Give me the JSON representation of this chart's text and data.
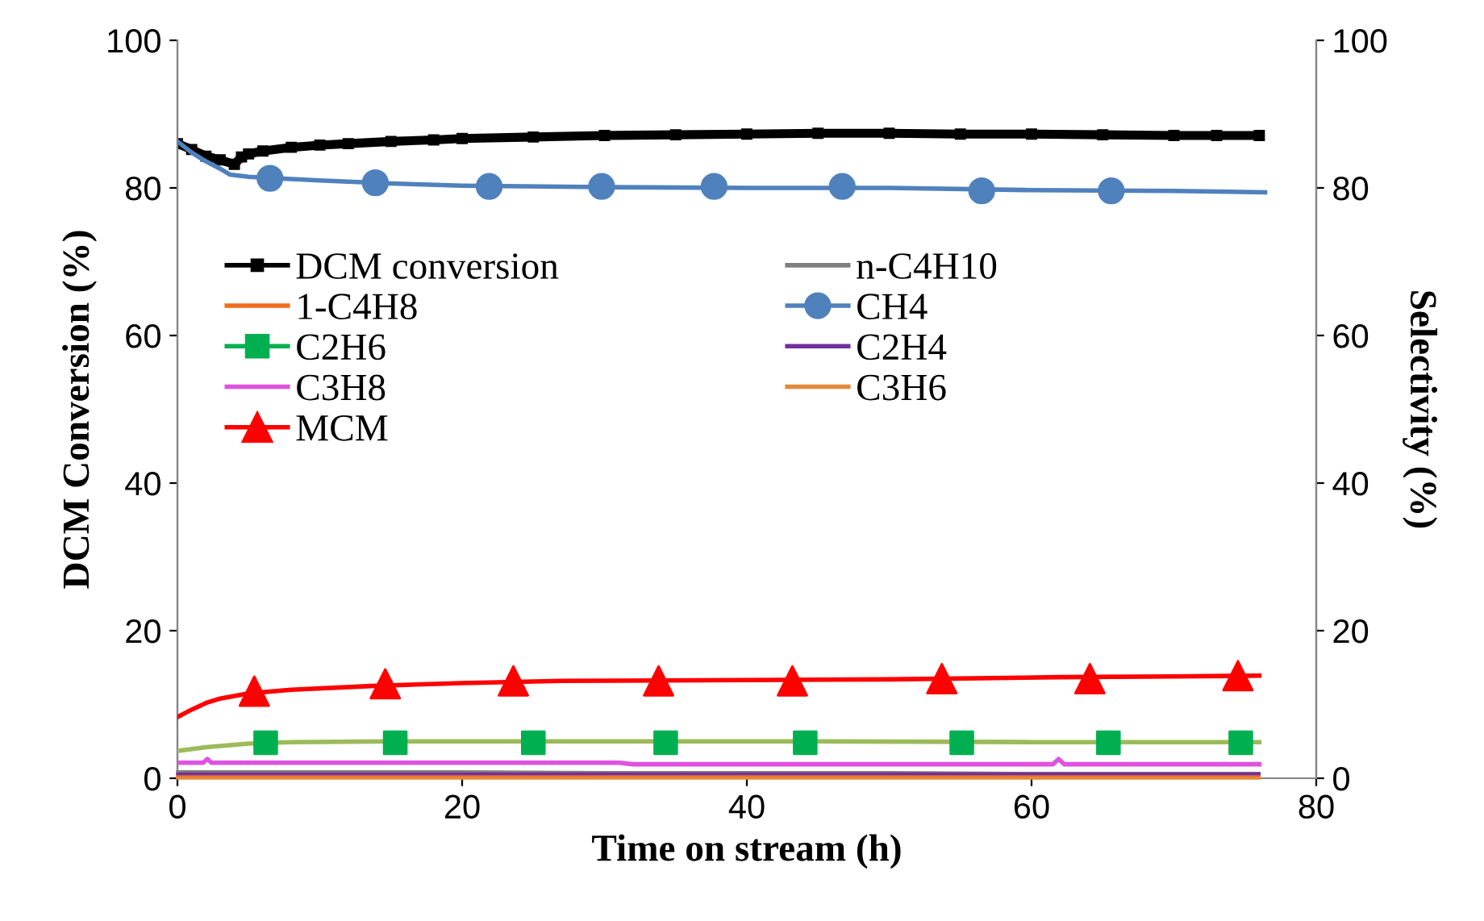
{
  "chart_data": {
    "type": "line",
    "xlabel": "Time on stream (h)",
    "ylabel": "DCM Conversion (%)",
    "y2label": "Selectivity (%)",
    "xlim": [
      0,
      80
    ],
    "xticks": [
      0,
      20,
      40,
      60,
      80
    ],
    "ylim": [
      0,
      100
    ],
    "yticks": [
      0,
      20,
      40,
      60,
      80,
      100
    ],
    "y2lim": [
      0,
      100
    ],
    "y2ticks": [
      0,
      20,
      40,
      60,
      80,
      100
    ],
    "grid": false,
    "legend": "left",
    "line_style": "solid",
    "series": [
      {
        "name": "DCM conversion",
        "marker": "square",
        "color": "#000000",
        "x": [
          0,
          1,
          2,
          3,
          4,
          4.5,
          5,
          6,
          8,
          10,
          12,
          15,
          18,
          20,
          25,
          30,
          35,
          40,
          45,
          50,
          55,
          60,
          65,
          70,
          73,
          76
        ],
        "values": [
          86,
          85.2,
          84.3,
          83.8,
          83.2,
          84.2,
          84.6,
          85,
          85.5,
          85.8,
          86,
          86.3,
          86.5,
          86.7,
          86.9,
          87.1,
          87.2,
          87.3,
          87.4,
          87.4,
          87.3,
          87.3,
          87.2,
          87.1,
          87.1,
          87.1
        ]
      },
      {
        "name": "n-C4H10",
        "axis": "y2",
        "marker": "none",
        "color": "#7f7f7f",
        "x": [
          0,
          5,
          10,
          20,
          30,
          40,
          50,
          60,
          70,
          76
        ],
        "values": [
          0.9,
          0.9,
          0.9,
          0.9,
          0.8,
          0.8,
          0.8,
          0.7,
          0.7,
          0.7
        ]
      },
      {
        "name": "1-C4H8",
        "axis": "y2",
        "marker": "none",
        "color": "#f26d1f",
        "x": [
          0,
          20,
          40,
          60,
          76
        ],
        "values": [
          0.3,
          0.3,
          0.3,
          0.3,
          0.3
        ]
      },
      {
        "name": "CH4",
        "type": "scatter",
        "axis": "y2",
        "marker": "circle",
        "color": "#4f81bd",
        "x": [
          6.5,
          13.9,
          21.9,
          29.8,
          37.7,
          46.7,
          56.5,
          65.6
        ],
        "values": [
          81.3,
          80.7,
          80.2,
          80.2,
          80.2,
          80.2,
          79.6,
          79.6
        ]
      },
      {
        "name": "C2H6",
        "type": "scatter",
        "axis": "y2",
        "marker": "square",
        "color": "#00b050",
        "x": [
          6.2,
          15.3,
          25.0,
          34.3,
          44.1,
          55.1,
          65.4,
          74.7
        ],
        "values": [
          4.8,
          4.8,
          4.8,
          4.8,
          4.8,
          4.8,
          4.8,
          4.8
        ]
      },
      {
        "name": "C2H4",
        "axis": "y2",
        "marker": "none",
        "color": "#7030a0",
        "x": [
          0,
          20,
          40,
          60,
          76
        ],
        "values": [
          0.6,
          0.6,
          0.6,
          0.6,
          0.6
        ]
      },
      {
        "name": "C3H8",
        "axis": "y2",
        "marker": "none",
        "color": "#e052e0",
        "x": [
          0,
          1.8,
          2.1,
          2.4,
          10,
          20,
          31,
          32,
          40,
          50,
          61.5,
          61.9,
          62.3,
          70,
          76
        ],
        "values": [
          2.1,
          2.1,
          2.6,
          2.1,
          2.1,
          2.1,
          2.1,
          1.9,
          1.9,
          1.9,
          1.9,
          2.6,
          1.9,
          1.9,
          1.9
        ]
      },
      {
        "name": "C3H6",
        "axis": "y2",
        "marker": "none",
        "color": "#e4893b",
        "x": [
          0,
          20,
          40,
          60,
          76
        ],
        "values": [
          0,
          0,
          0,
          0,
          0
        ]
      },
      {
        "name": "MCM",
        "type": "scatter",
        "axis": "y2",
        "marker": "triangle",
        "color": "#ff0000",
        "x": [
          5.4,
          14.6,
          23.6,
          33.8,
          43.2,
          53.7,
          64.1,
          74.5
        ],
        "values": [
          11.8,
          12.8,
          13.2,
          13.2,
          13.2,
          13.5,
          13.5,
          13.9
        ]
      },
      {
        "axis": "y2",
        "marker": "none",
        "color": "#4f81bd",
        "x": [
          0,
          1,
          2,
          3,
          3.7,
          5,
          8,
          10,
          15,
          20,
          30,
          40,
          50,
          60,
          70,
          76.4
        ],
        "values": [
          86.3,
          84.8,
          83.6,
          82.6,
          81.8,
          81.5,
          81.2,
          81,
          80.6,
          80.3,
          80.1,
          80,
          80,
          79.7,
          79.6,
          79.4
        ]
      },
      {
        "axis": "y2",
        "marker": "none",
        "color": "#9bbb59",
        "x": [
          0,
          2,
          5,
          8,
          15,
          30,
          45,
          60,
          76
        ],
        "values": [
          3.7,
          4.2,
          4.7,
          4.9,
          5,
          5,
          5,
          4.9,
          4.9
        ]
      },
      {
        "axis": "y2",
        "marker": "none",
        "color": "#ff0000",
        "x": [
          0,
          1,
          2,
          3,
          5,
          8,
          13.6,
          20,
          27,
          40,
          50,
          62,
          70,
          76
        ],
        "values": [
          8.3,
          9.3,
          10.2,
          10.8,
          11.5,
          12,
          12.5,
          12.9,
          13.2,
          13.3,
          13.4,
          13.7,
          13.8,
          13.9
        ]
      }
    ]
  }
}
